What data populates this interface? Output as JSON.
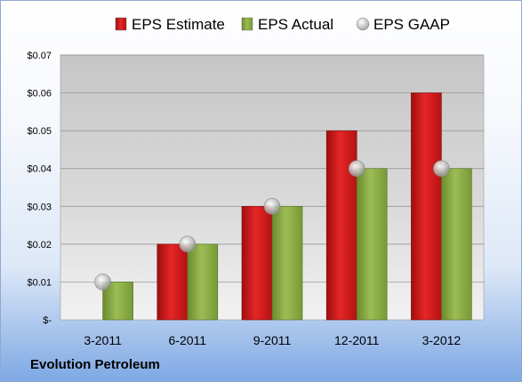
{
  "company_label": "Evolution Petroleum",
  "chart_data": {
    "type": "bar",
    "categories": [
      "3-2011",
      "6-2011",
      "9-2011",
      "12-2011",
      "3-2012"
    ],
    "series": [
      {
        "name": "EPS Estimate",
        "values": [
          null,
          0.02,
          0.03,
          0.05,
          0.06
        ],
        "color": "#d11a1a"
      },
      {
        "name": "EPS Actual",
        "values": [
          0.01,
          0.02,
          0.03,
          0.04,
          0.04
        ],
        "color": "#8aab46"
      }
    ],
    "markers": {
      "name": "EPS GAAP",
      "values": [
        0.01,
        0.02,
        0.03,
        0.04,
        0.04
      ],
      "color": "#b8b8b8"
    },
    "ylim": [
      0,
      0.07
    ],
    "yticks": [
      0,
      0.01,
      0.02,
      0.03,
      0.04,
      0.05,
      0.06,
      0.07
    ],
    "ytick_labels": [
      "$-",
      "$0.01",
      "$0.02",
      "$0.03",
      "$0.04",
      "$0.05",
      "$0.06",
      "$0.07"
    ],
    "legend_position": "top",
    "grid": true
  }
}
